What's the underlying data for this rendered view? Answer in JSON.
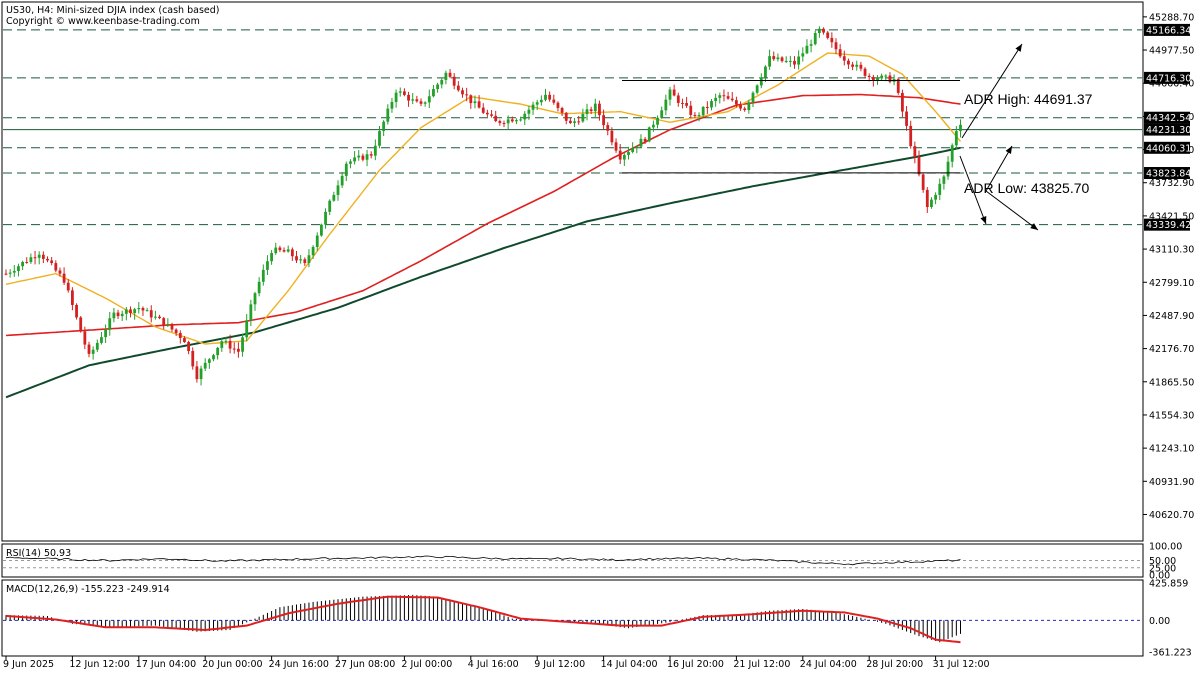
{
  "header": {
    "title": "US30, H4:  Mini-sized DJIA index (cash based)",
    "copyright": "Copyright © www.keenbase-trading.com"
  },
  "colors": {
    "background": "#ffffff",
    "bull": "#22a02a",
    "bear": "#d42020",
    "ma_fast": "#f0b020",
    "ma_mid": "#e02020",
    "ma_slow": "#104a2c",
    "macd_line": "#e02020",
    "macd_hist": "#000000"
  },
  "chart_data": [
    {
      "type": "candlestick",
      "symbol": "US30",
      "timeframe": "H4",
      "ylim": [
        40400,
        45400
      ],
      "y_ticks": [
        45288.7,
        44977.5,
        44666.4,
        44355.3,
        44044.2,
        43732.9,
        43421.5,
        43110.3,
        42799.1,
        42487.9,
        42176.7,
        41865.5,
        41554.3,
        41243.1,
        40931.9,
        40620.7
      ],
      "x_labels": [
        "9 Jun 2025",
        "12 Jun 12:00",
        "17 Jun 04:00",
        "20 Jun 00:00",
        "24 Jun 16:00",
        "27 Jun 08:00",
        "2 Jul 00:00",
        "4 Jul 16:00",
        "9 Jul 12:00",
        "14 Jul 04:00",
        "16 Jul 20:00",
        "21 Jul 12:00",
        "24 Jul 04:00",
        "28 Jul 20:00",
        "31 Jul 12:00"
      ],
      "x_label_index": [
        0,
        16,
        32,
        48,
        64,
        80,
        96,
        112,
        128,
        144,
        160,
        176,
        192,
        208,
        224
      ],
      "key_levels": [
        {
          "value": 45166.34,
          "label": "45166.34"
        },
        {
          "value": 44716.3,
          "label": "44716.30"
        },
        {
          "value": 44342.54,
          "label": "44342.54"
        },
        {
          "value": 44231.3,
          "label": "44231.30"
        },
        {
          "value": 44060.31,
          "label": "44060.31"
        },
        {
          "value": 43823.84,
          "label": "43823.84"
        },
        {
          "value": 43339.42,
          "label": "43339.42"
        }
      ],
      "annotations": {
        "adr_high": "ADR High: 44691.37",
        "adr_low": "ADR Low: 43825.70"
      },
      "anchors": [
        {
          "i": 0,
          "p": 42880
        },
        {
          "i": 8,
          "p": 43080
        },
        {
          "i": 14,
          "p": 42820
        },
        {
          "i": 20,
          "p": 42100
        },
        {
          "i": 26,
          "p": 42500
        },
        {
          "i": 32,
          "p": 42560
        },
        {
          "i": 38,
          "p": 42420
        },
        {
          "i": 43,
          "p": 42260
        },
        {
          "i": 46,
          "p": 41920
        },
        {
          "i": 52,
          "p": 42250
        },
        {
          "i": 56,
          "p": 42150
        },
        {
          "i": 60,
          "p": 42700
        },
        {
          "i": 64,
          "p": 43100
        },
        {
          "i": 68,
          "p": 43080
        },
        {
          "i": 72,
          "p": 42960
        },
        {
          "i": 76,
          "p": 43350
        },
        {
          "i": 82,
          "p": 43920
        },
        {
          "i": 88,
          "p": 44000
        },
        {
          "i": 94,
          "p": 44600
        },
        {
          "i": 100,
          "p": 44450
        },
        {
          "i": 106,
          "p": 44760
        },
        {
          "i": 112,
          "p": 44500
        },
        {
          "i": 118,
          "p": 44300
        },
        {
          "i": 124,
          "p": 44350
        },
        {
          "i": 130,
          "p": 44560
        },
        {
          "i": 136,
          "p": 44280
        },
        {
          "i": 142,
          "p": 44450
        },
        {
          "i": 148,
          "p": 43980
        },
        {
          "i": 154,
          "p": 44150
        },
        {
          "i": 160,
          "p": 44580
        },
        {
          "i": 166,
          "p": 44350
        },
        {
          "i": 172,
          "p": 44550
        },
        {
          "i": 178,
          "p": 44430
        },
        {
          "i": 184,
          "p": 44900
        },
        {
          "i": 190,
          "p": 44850
        },
        {
          "i": 196,
          "p": 45160
        },
        {
          "i": 202,
          "p": 44900
        },
        {
          "i": 208,
          "p": 44730
        },
        {
          "i": 214,
          "p": 44700
        },
        {
          "i": 218,
          "p": 44100
        },
        {
          "i": 222,
          "p": 43500
        },
        {
          "i": 226,
          "p": 43780
        },
        {
          "i": 229,
          "p": 44230
        },
        {
          "i": 230,
          "p": 44300
        }
      ],
      "ma20": [
        {
          "i": 0,
          "p": 42780
        },
        {
          "i": 12,
          "p": 42880
        },
        {
          "i": 24,
          "p": 42650
        },
        {
          "i": 36,
          "p": 42380
        },
        {
          "i": 48,
          "p": 42220
        },
        {
          "i": 58,
          "p": 42250
        },
        {
          "i": 68,
          "p": 42720
        },
        {
          "i": 78,
          "p": 43250
        },
        {
          "i": 90,
          "p": 43850
        },
        {
          "i": 100,
          "p": 44250
        },
        {
          "i": 112,
          "p": 44540
        },
        {
          "i": 124,
          "p": 44470
        },
        {
          "i": 134,
          "p": 44380
        },
        {
          "i": 148,
          "p": 44400
        },
        {
          "i": 160,
          "p": 44300
        },
        {
          "i": 174,
          "p": 44400
        },
        {
          "i": 186,
          "p": 44650
        },
        {
          "i": 198,
          "p": 44950
        },
        {
          "i": 208,
          "p": 44920
        },
        {
          "i": 216,
          "p": 44750
        },
        {
          "i": 224,
          "p": 44400
        },
        {
          "i": 230,
          "p": 44120
        }
      ],
      "ma100": [
        {
          "i": 0,
          "p": 42300
        },
        {
          "i": 20,
          "p": 42350
        },
        {
          "i": 40,
          "p": 42400
        },
        {
          "i": 56,
          "p": 42420
        },
        {
          "i": 70,
          "p": 42520
        },
        {
          "i": 86,
          "p": 42720
        },
        {
          "i": 100,
          "p": 43000
        },
        {
          "i": 116,
          "p": 43350
        },
        {
          "i": 132,
          "p": 43650
        },
        {
          "i": 146,
          "p": 43960
        },
        {
          "i": 160,
          "p": 44230
        },
        {
          "i": 176,
          "p": 44460
        },
        {
          "i": 192,
          "p": 44550
        },
        {
          "i": 206,
          "p": 44560
        },
        {
          "i": 220,
          "p": 44530
        },
        {
          "i": 230,
          "p": 44470
        }
      ],
      "ma200": [
        {
          "i": 0,
          "p": 41720
        },
        {
          "i": 20,
          "p": 42020
        },
        {
          "i": 40,
          "p": 42180
        },
        {
          "i": 60,
          "p": 42330
        },
        {
          "i": 80,
          "p": 42560
        },
        {
          "i": 100,
          "p": 42850
        },
        {
          "i": 120,
          "p": 43120
        },
        {
          "i": 140,
          "p": 43370
        },
        {
          "i": 160,
          "p": 43540
        },
        {
          "i": 180,
          "p": 43700
        },
        {
          "i": 200,
          "p": 43840
        },
        {
          "i": 220,
          "p": 43980
        },
        {
          "i": 230,
          "p": 44060
        }
      ]
    },
    {
      "type": "line",
      "name": "RSI(14) 50.93",
      "ylim": [
        0,
        100
      ],
      "y_ticks": [
        100.0,
        50.0,
        25.0,
        0.0
      ],
      "y_tick_labels": [
        "100.00",
        "50.00",
        "25.00",
        "0.00"
      ],
      "values": [
        60,
        58,
        55,
        52,
        50,
        54,
        56,
        53,
        48,
        50,
        52,
        55,
        57,
        58,
        60,
        62,
        63,
        61,
        58,
        56,
        55,
        57,
        54,
        52,
        55,
        56,
        58,
        56,
        54,
        50,
        45,
        40,
        38,
        42,
        45,
        48,
        50.93
      ]
    },
    {
      "type": "bar",
      "name": "MACD(12,26,9) -155.223 -249.914",
      "ylim": [
        -361.223,
        425.859
      ],
      "y_ticks": [
        425.859,
        0.0,
        -361.223
      ],
      "y_tick_labels": [
        "425.859",
        "0.00",
        "-361.223"
      ],
      "hist": [
        {
          "i": 0,
          "v": 60
        },
        {
          "i": 10,
          "v": 50
        },
        {
          "i": 16,
          "v": -40
        },
        {
          "i": 26,
          "v": -80
        },
        {
          "i": 36,
          "v": -60
        },
        {
          "i": 46,
          "v": -130
        },
        {
          "i": 54,
          "v": -110
        },
        {
          "i": 60,
          "v": 20
        },
        {
          "i": 66,
          "v": 150
        },
        {
          "i": 74,
          "v": 210
        },
        {
          "i": 86,
          "v": 270
        },
        {
          "i": 98,
          "v": 290
        },
        {
          "i": 104,
          "v": 270
        },
        {
          "i": 116,
          "v": 130
        },
        {
          "i": 122,
          "v": 20
        },
        {
          "i": 132,
          "v": -10
        },
        {
          "i": 140,
          "v": -30
        },
        {
          "i": 150,
          "v": -90
        },
        {
          "i": 160,
          "v": -20
        },
        {
          "i": 168,
          "v": 60
        },
        {
          "i": 176,
          "v": 60
        },
        {
          "i": 184,
          "v": 110
        },
        {
          "i": 192,
          "v": 130
        },
        {
          "i": 200,
          "v": 90
        },
        {
          "i": 206,
          "v": 30
        },
        {
          "i": 212,
          "v": -40
        },
        {
          "i": 220,
          "v": -180
        },
        {
          "i": 225,
          "v": -250
        },
        {
          "i": 230,
          "v": -155
        }
      ],
      "signal": [
        {
          "i": 0,
          "v": 50
        },
        {
          "i": 12,
          "v": 10
        },
        {
          "i": 24,
          "v": -80
        },
        {
          "i": 36,
          "v": -80
        },
        {
          "i": 48,
          "v": -110
        },
        {
          "i": 58,
          "v": -60
        },
        {
          "i": 68,
          "v": 80
        },
        {
          "i": 80,
          "v": 190
        },
        {
          "i": 92,
          "v": 270
        },
        {
          "i": 104,
          "v": 260
        },
        {
          "i": 114,
          "v": 150
        },
        {
          "i": 124,
          "v": 20
        },
        {
          "i": 136,
          "v": -20
        },
        {
          "i": 148,
          "v": -60
        },
        {
          "i": 158,
          "v": -60
        },
        {
          "i": 168,
          "v": 40
        },
        {
          "i": 180,
          "v": 70
        },
        {
          "i": 192,
          "v": 110
        },
        {
          "i": 202,
          "v": 90
        },
        {
          "i": 210,
          "v": 20
        },
        {
          "i": 218,
          "v": -90
        },
        {
          "i": 224,
          "v": -220
        },
        {
          "i": 230,
          "v": -250
        }
      ]
    }
  ]
}
